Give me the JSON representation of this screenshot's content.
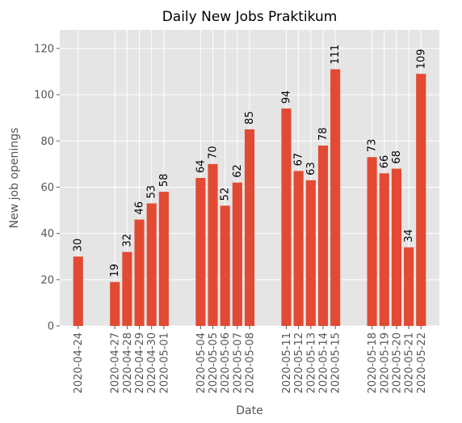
{
  "chart_data": {
    "type": "bar",
    "title": "Daily New Jobs Praktikum",
    "xlabel": "Date",
    "ylabel": "New job openings",
    "ylim": [
      0,
      128
    ],
    "yticks": [
      0,
      20,
      40,
      60,
      80,
      100,
      120
    ],
    "grid": true,
    "x": [
      "2020-04-24",
      "2020-04-27",
      "2020-04-28",
      "2020-04-29",
      "2020-04-30",
      "2020-05-01",
      "2020-05-04",
      "2020-05-05",
      "2020-05-06",
      "2020-05-07",
      "2020-05-08",
      "2020-05-11",
      "2020-05-12",
      "2020-05-13",
      "2020-05-14",
      "2020-05-15",
      "2020-05-18",
      "2020-05-19",
      "2020-05-20",
      "2020-05-21",
      "2020-05-22"
    ],
    "values": [
      30,
      19,
      32,
      46,
      53,
      58,
      64,
      70,
      52,
      62,
      85,
      94,
      67,
      63,
      78,
      111,
      73,
      66,
      68,
      34,
      109
    ],
    "colors": {
      "bar": "#E24A33",
      "background": "#E5E5E5",
      "grid": "#FFFFFF"
    }
  }
}
